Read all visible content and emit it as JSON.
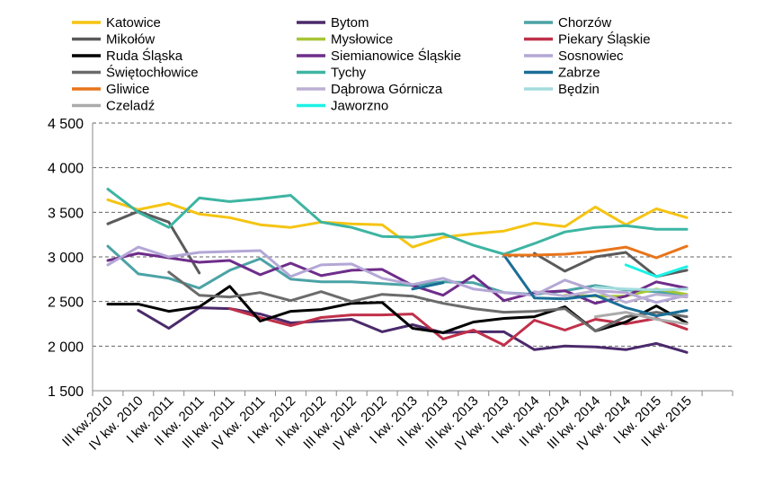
{
  "chart_data": {
    "type": "line",
    "title": "",
    "xlabel": "",
    "ylabel": "",
    "ylim": [
      1500,
      4500
    ],
    "yticks": [
      1500,
      2000,
      2500,
      3000,
      3500,
      4000,
      4500
    ],
    "ytick_labels": [
      "1 500",
      "2 000",
      "2 500",
      "3 000",
      "3 500",
      "4 000",
      "4 500"
    ],
    "legend_position": "top",
    "categories": [
      "III kw.2010",
      "IV kw. 2010",
      "I kw. 2011",
      "II kw. 2011",
      "III kw. 2011",
      "IV kw. 2011",
      "I kw. 2012",
      "II kw. 2012",
      "III kw. 2012",
      "IV kw. 2012",
      "I kw. 2013",
      "II kw. 2013",
      "III kw. 2013",
      "IV kw. 2013",
      "I kw. 2014",
      "II kw. 2014",
      "III kw. 2014",
      "IV kw. 2014",
      "I kw. 2015",
      "II kw. 2015"
    ],
    "x_slots": 21,
    "series": [
      {
        "name": "Katowice",
        "color": "#F5C413",
        "values": [
          3640,
          3530,
          3600,
          3480,
          3440,
          3360,
          3330,
          3390,
          3370,
          3360,
          3110,
          3220,
          3260,
          3290,
          3380,
          3340,
          3560,
          3360,
          3540,
          3440
        ]
      },
      {
        "name": "Bytom",
        "color": "#4B2A6B",
        "values": [
          null,
          2400,
          2200,
          2430,
          2420,
          2360,
          2260,
          2280,
          2300,
          2160,
          2240,
          2150,
          2160,
          2160,
          1960,
          2000,
          1990,
          1960,
          2030,
          1930
        ]
      },
      {
        "name": "Chorzów",
        "color": "#4BA3A6",
        "values": [
          3120,
          2810,
          2760,
          2650,
          2850,
          2980,
          2750,
          2720,
          2720,
          2700,
          2680,
          2720,
          2710,
          2600,
          2580,
          2620,
          2680,
          2630,
          2610,
          2570
        ]
      },
      {
        "name": "Mikołów",
        "color": "#5A5A5A",
        "values": [
          3370,
          3510,
          3390,
          2820,
          null,
          null,
          null,
          null,
          null,
          null,
          null,
          null,
          null,
          null,
          3040,
          2840,
          3000,
          3050,
          2780,
          2850
        ]
      },
      {
        "name": "Mysłowice",
        "color": "#A8C535",
        "values": [
          null,
          null,
          null,
          null,
          null,
          null,
          null,
          null,
          null,
          null,
          null,
          null,
          null,
          null,
          null,
          2570,
          2560,
          2560,
          2640,
          2580
        ]
      },
      {
        "name": "Piekary Śląskie",
        "color": "#C0304A",
        "values": [
          null,
          null,
          null,
          null,
          2420,
          2320,
          2230,
          2320,
          2350,
          2350,
          2360,
          2080,
          2180,
          2010,
          2290,
          2180,
          2300,
          2250,
          2310,
          2190
        ]
      },
      {
        "name": "Ruda Śląska",
        "color": "#000000",
        "values": [
          2470,
          2470,
          2390,
          2440,
          2670,
          2280,
          2390,
          2410,
          2480,
          2490,
          2200,
          2150,
          2270,
          2310,
          2330,
          2440,
          2170,
          2270,
          2450,
          2260
        ]
      },
      {
        "name": "Siemianowice Śląskie",
        "color": "#6E2D8A",
        "values": [
          2960,
          3040,
          2990,
          2940,
          2960,
          2800,
          2930,
          2790,
          2850,
          2860,
          2680,
          2570,
          2790,
          2510,
          2600,
          2620,
          2480,
          2560,
          2720,
          2650
        ]
      },
      {
        "name": "Sosnowiec",
        "color": "#B4A7D6",
        "values": [
          2910,
          3110,
          3000,
          3050,
          3060,
          3070,
          2780,
          2910,
          2920,
          2760,
          2690,
          2760,
          2640,
          2600,
          2570,
          2740,
          2620,
          2600,
          2490,
          2570
        ]
      },
      {
        "name": "Świętochłowice",
        "color": "#6B6B6B",
        "values": [
          null,
          null,
          2830,
          2570,
          2550,
          2600,
          2510,
          2610,
          2500,
          2580,
          2560,
          2480,
          2420,
          2380,
          2390,
          2420,
          2170,
          2330,
          2380,
          2330
        ]
      },
      {
        "name": "Tychy",
        "color": "#3DB5A2",
        "values": [
          3760,
          3500,
          3330,
          3660,
          3620,
          3650,
          3690,
          3390,
          3330,
          3230,
          3220,
          3260,
          3130,
          3030,
          3150,
          3280,
          3330,
          3350,
          3310,
          3310
        ]
      },
      {
        "name": "Zabrze",
        "color": "#1A6E96",
        "values": [
          null,
          null,
          null,
          null,
          null,
          null,
          null,
          null,
          null,
          null,
          2640,
          2710,
          null,
          3020,
          2540,
          2530,
          2570,
          2430,
          2340,
          2400
        ]
      },
      {
        "name": "Gliwice",
        "color": "#E8741A",
        "values": [
          null,
          null,
          null,
          null,
          null,
          null,
          null,
          null,
          null,
          null,
          null,
          null,
          null,
          3020,
          3020,
          3030,
          3060,
          3110,
          2990,
          3120
        ]
      },
      {
        "name": "Dąbrowa Górnicza",
        "color": "#BBB0D4",
        "values": [
          null,
          null,
          null,
          null,
          null,
          null,
          null,
          null,
          null,
          null,
          null,
          null,
          null,
          null,
          2610,
          2560,
          2620,
          2490,
          2580,
          2550
        ]
      },
      {
        "name": "Będzin",
        "color": "#A4DCDE",
        "values": [
          null,
          null,
          null,
          null,
          null,
          null,
          null,
          null,
          null,
          null,
          null,
          null,
          null,
          null,
          null,
          null,
          2660,
          2640,
          2630,
          2640
        ]
      },
      {
        "name": "Czeladź",
        "color": "#ABABAB",
        "values": [
          null,
          null,
          null,
          null,
          null,
          null,
          null,
          null,
          null,
          null,
          null,
          null,
          null,
          null,
          null,
          null,
          2330,
          2380,
          2300,
          2250
        ]
      },
      {
        "name": "Jaworzno",
        "color": "#1DF2E6",
        "values": [
          null,
          null,
          null,
          null,
          null,
          null,
          null,
          null,
          null,
          null,
          null,
          null,
          null,
          null,
          null,
          null,
          null,
          2910,
          2780,
          2890
        ]
      }
    ]
  }
}
